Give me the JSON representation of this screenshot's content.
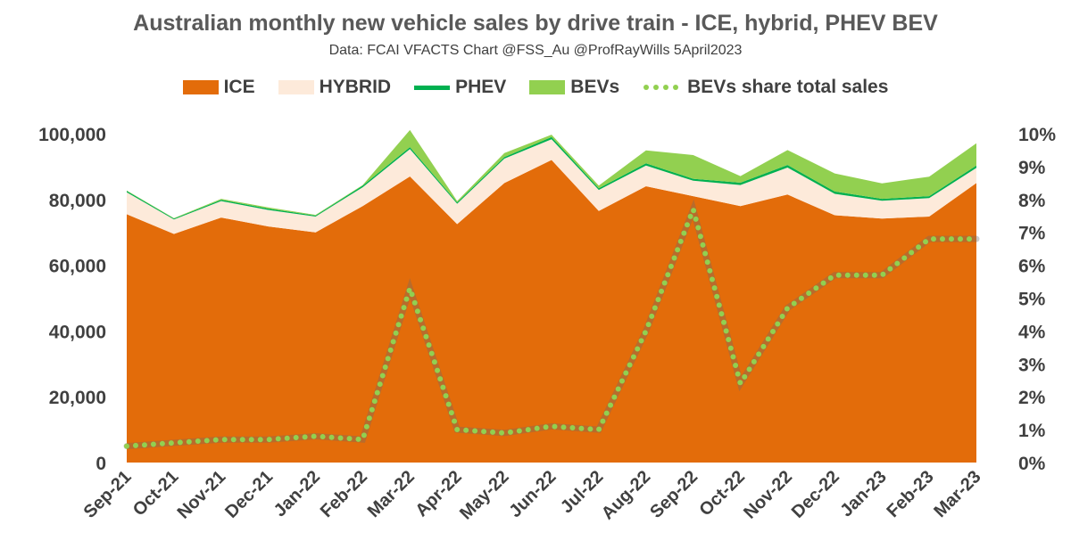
{
  "chart_data": {
    "type": "area",
    "title": "Australian monthly new vehicle sales by drive train - ICE, hybrid, PHEV  BEV",
    "subtitle": "Data: FCAI VFACTS  Chart @FSS_Au @ProfRayWills 5April2023",
    "categories": [
      "Sep-21",
      "Oct-21",
      "Nov-21",
      "Dec-21",
      "Jan-22",
      "Feb-22",
      "Mar-22",
      "Apr-22",
      "May-22",
      "Jun-22",
      "Jul-22",
      "Aug-22",
      "Sep-22",
      "Oct-22",
      "Nov-22",
      "Dec-22",
      "Jan-23",
      "Feb-23",
      "Mar-23"
    ],
    "series": [
      {
        "name": "ICE",
        "axis": "left",
        "kind": "stacked-area",
        "color": "#E36C0A",
        "values": [
          75500,
          69500,
          74500,
          71800,
          70000,
          78000,
          87000,
          72500,
          85000,
          92000,
          76500,
          84000,
          81000,
          78000,
          81500,
          75200,
          74200,
          74800,
          85000
        ]
      },
      {
        "name": "HYBRID",
        "axis": "left",
        "kind": "stacked-area",
        "color": "#FDEADA",
        "values": [
          6700,
          4400,
          5000,
          5000,
          4800,
          5700,
          8300,
          6200,
          7400,
          6300,
          6400,
          6300,
          4700,
          6400,
          8200,
          6500,
          5400,
          5600,
          4600
        ]
      },
      {
        "name": "PHEV",
        "axis": "left",
        "kind": "stacked-area",
        "color": "#00B050",
        "values": [
          400,
          300,
          400,
          400,
          300,
          500,
          600,
          400,
          500,
          700,
          500,
          700,
          600,
          700,
          800,
          700,
          600,
          600,
          700
        ]
      },
      {
        "name": "BEVs",
        "axis": "left",
        "kind": "stacked-area",
        "color": "#92D050",
        "values": [
          100,
          100,
          300,
          400,
          200,
          200,
          5200,
          400,
          1200,
          700,
          800,
          3900,
          7200,
          2000,
          4500,
          5500,
          4700,
          5900,
          6800
        ]
      },
      {
        "name": "BEVs share total sales",
        "axis": "right",
        "kind": "dotted-line",
        "color": "#92D050",
        "values": [
          0.5,
          0.6,
          0.7,
          0.7,
          0.8,
          0.7,
          5.3,
          1.0,
          0.9,
          1.1,
          1.0,
          4.0,
          7.7,
          2.4,
          4.7,
          5.7,
          5.7,
          6.8,
          6.8
        ]
      }
    ],
    "y_left": {
      "min": 0,
      "max": 100000,
      "ticks": [
        0,
        20000,
        40000,
        60000,
        80000,
        100000
      ],
      "tick_labels": [
        "0",
        "20,000",
        "40,000",
        "60,000",
        "80,000",
        "100,000"
      ]
    },
    "y_right": {
      "min": 0,
      "max": 10,
      "ticks": [
        0,
        1,
        2,
        3,
        4,
        5,
        6,
        7,
        8,
        9,
        10
      ],
      "tick_labels": [
        "0%",
        "1%",
        "2%",
        "3%",
        "4%",
        "5%",
        "6%",
        "7%",
        "8%",
        "9%",
        "10%"
      ]
    },
    "legend_position": "top-center",
    "grid": false
  }
}
